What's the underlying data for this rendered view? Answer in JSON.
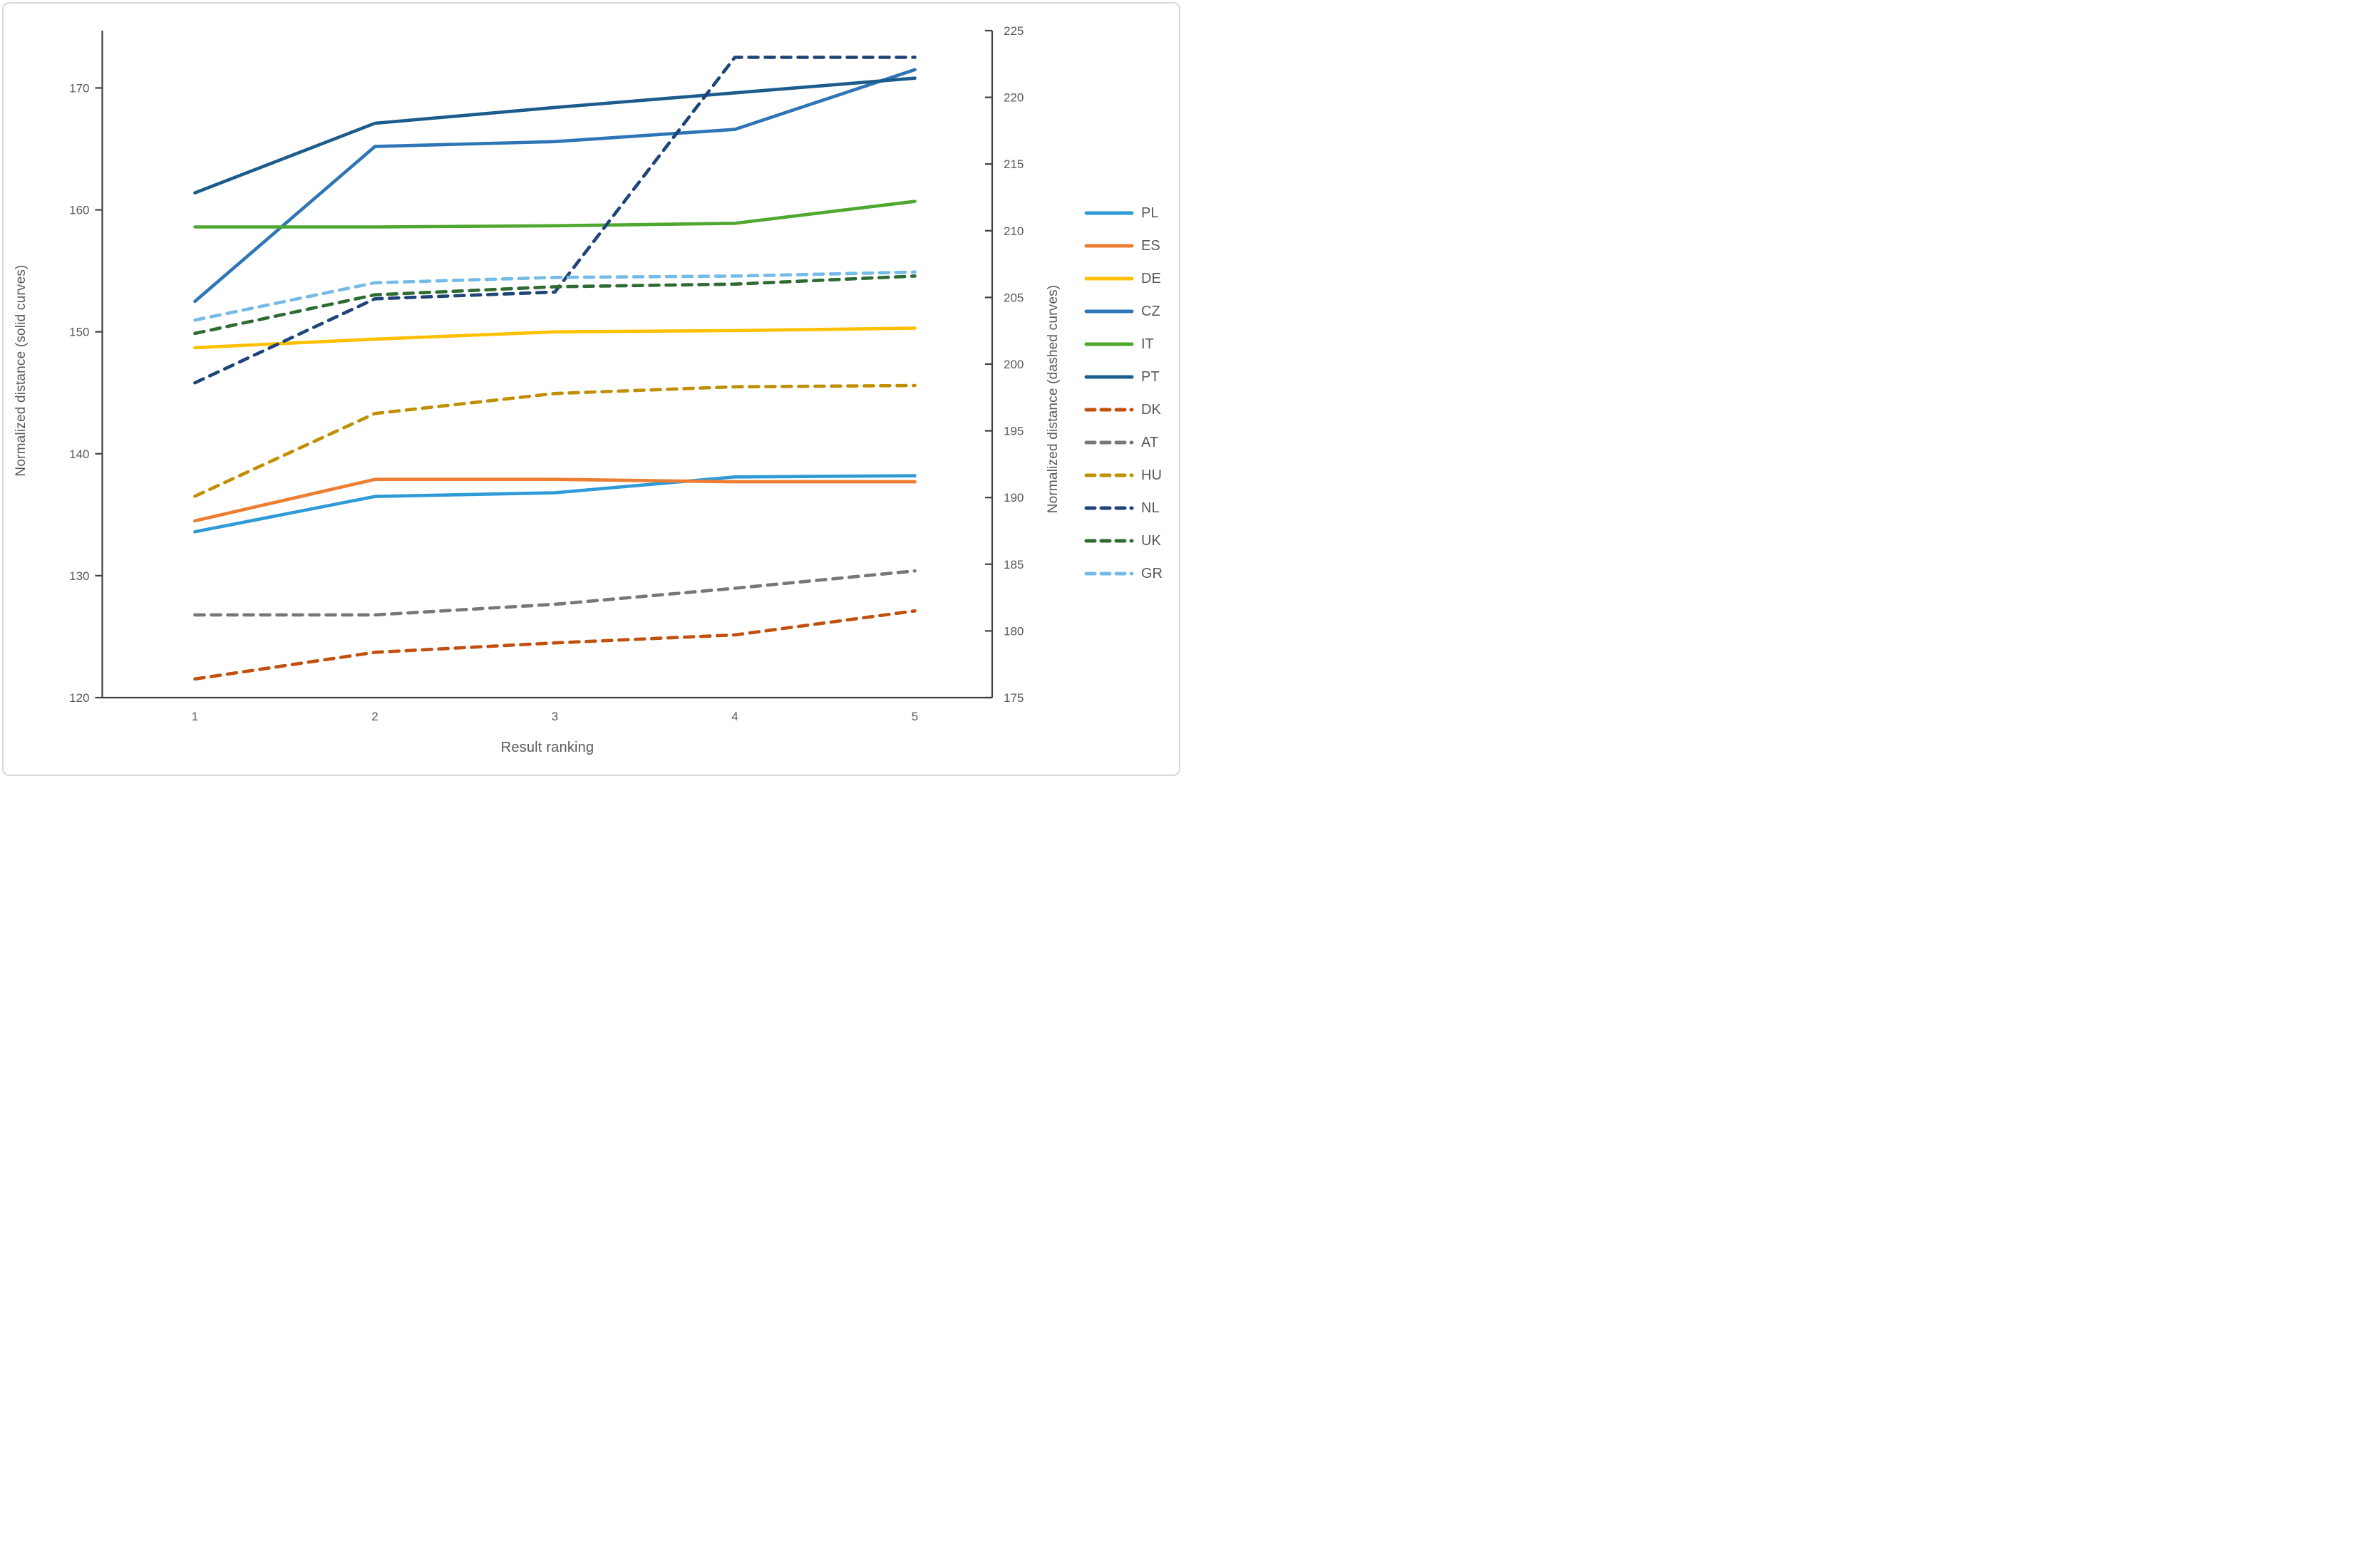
{
  "chart_data": {
    "type": "line",
    "title": "",
    "xlabel": "Result ranking",
    "ylabel_left": "Normalized distance (solid curves)",
    "ylabel_right": "Normalized distance (dashed curves)",
    "x": [
      1,
      2,
      3,
      4,
      5
    ],
    "xticks": [
      "1",
      "2",
      "3",
      "4",
      "5"
    ],
    "ylim_left": [
      120,
      174.7
    ],
    "ylim_right": [
      175,
      225
    ],
    "yticks_left": [
      "120",
      "130",
      "140",
      "150",
      "160",
      "170"
    ],
    "yticks_right": [
      "175",
      "180",
      "185",
      "190",
      "195",
      "200",
      "205",
      "210",
      "215",
      "220",
      "225"
    ],
    "grid": false,
    "legend_position": "right",
    "series": [
      {
        "name": "PL",
        "axis": "left",
        "style": "solid",
        "color": "#2E9BD6",
        "values": [
          133.6,
          136.5,
          136.8,
          138.1,
          138.2
        ]
      },
      {
        "name": "ES",
        "axis": "left",
        "style": "solid",
        "color": "#ED7D31",
        "values": [
          134.5,
          137.9,
          137.9,
          137.7,
          137.7
        ]
      },
      {
        "name": "DE",
        "axis": "left",
        "style": "solid",
        "color": "#FFC000",
        "values": [
          148.7,
          149.4,
          150.0,
          150.1,
          150.3
        ]
      },
      {
        "name": "CZ",
        "axis": "left",
        "style": "solid",
        "color": "#2E75B6",
        "values": [
          152.5,
          165.2,
          165.6,
          166.6,
          171.5
        ]
      },
      {
        "name": "IT",
        "axis": "left",
        "style": "solid",
        "color": "#4EA72E",
        "values": [
          158.6,
          158.6,
          158.7,
          158.9,
          160.7
        ]
      },
      {
        "name": "PT",
        "axis": "left",
        "style": "solid",
        "color": "#1B5C8C",
        "values": [
          161.4,
          167.1,
          168.4,
          169.6,
          170.8
        ]
      },
      {
        "name": "DK",
        "axis": "right",
        "style": "dashed",
        "color": "#C0500F",
        "values": [
          176.4,
          178.4,
          179.1,
          179.7,
          181.5
        ]
      },
      {
        "name": "AT",
        "axis": "right",
        "style": "dashed",
        "color": "#7B7674",
        "values": [
          181.2,
          181.2,
          182.0,
          183.2,
          184.5
        ]
      },
      {
        "name": "HU",
        "axis": "right",
        "style": "dashed",
        "color": "#BF8F00",
        "values": [
          190.1,
          196.3,
          197.8,
          198.3,
          198.4
        ]
      },
      {
        "name": "NL",
        "axis": "right",
        "style": "dashed",
        "color": "#1E4478",
        "values": [
          198.6,
          204.9,
          205.4,
          223.0,
          223.0
        ]
      },
      {
        "name": "UK",
        "axis": "right",
        "style": "dashed",
        "color": "#2E6B30",
        "values": [
          202.3,
          205.2,
          205.8,
          206.0,
          206.6
        ]
      },
      {
        "name": "GR",
        "axis": "right",
        "style": "dashed",
        "color": "#74BBE8",
        "values": [
          203.3,
          206.1,
          206.5,
          206.6,
          206.9
        ]
      }
    ]
  },
  "colors": {
    "text": "#595959",
    "axis_line": "#404040",
    "frame_border": "#D9D9D9",
    "background": "#FFFFFF"
  }
}
